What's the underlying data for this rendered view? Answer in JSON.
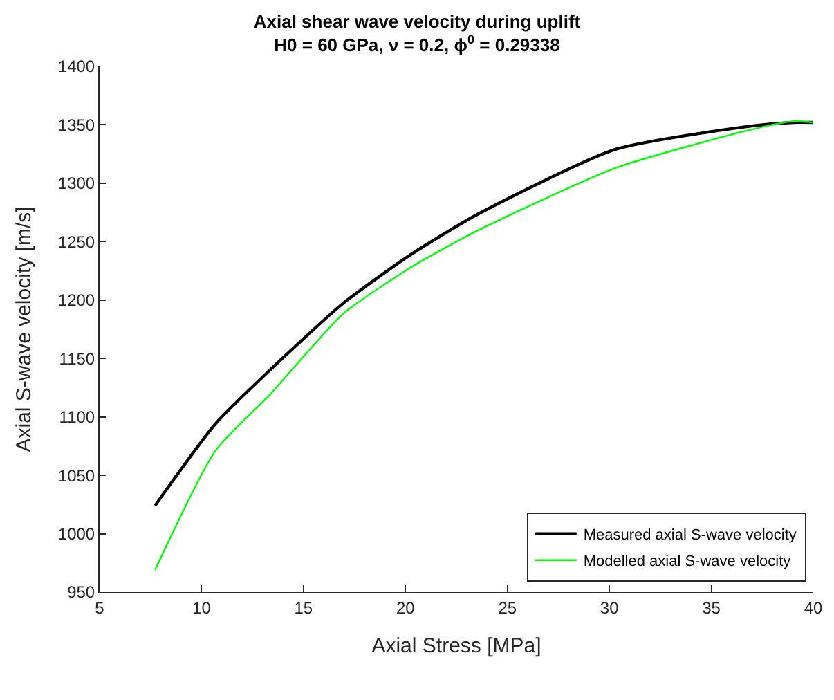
{
  "chart_data": {
    "type": "line",
    "title": "Axial shear wave velocity during uplift",
    "subtitle": "H0 = 60 GPa, ν = 0.2, ϕ$^{0}$ = 0.29338",
    "xlabel": "Axial Stress [MPa]",
    "ylabel": "Axial S-wave velocity [m/s]",
    "series": [
      {
        "name": "Measured axial S-wave velocity",
        "color": "#000000",
        "x": [
          7.72,
          10.68,
          13.35,
          16.93,
          20.27,
          23.6,
          30.3,
          36.98,
          39.0,
          40.0
        ],
        "values": [
          1024,
          1094,
          1140,
          1197,
          1239,
          1274,
          1329,
          1349,
          1352,
          1352
        ]
      },
      {
        "name": "Modelled axial S-wave velocity",
        "color": "#00ff00",
        "x": [
          7.72,
          10.68,
          13.35,
          16.93,
          20.27,
          23.6,
          30.3,
          36.98,
          39.0,
          40.0
        ],
        "values": [
          969,
          1071,
          1119,
          1188,
          1228,
          1260,
          1313,
          1346,
          1353,
          1352
        ]
      }
    ],
    "xlim": [
      5,
      40
    ],
    "xticks": [
      5,
      10,
      15,
      20,
      25,
      30,
      35,
      40
    ],
    "ylim": [
      950,
      1400
    ],
    "yticks": [
      950,
      1000,
      1050,
      1100,
      1150,
      1200,
      1250,
      1300,
      1350,
      1400
    ],
    "legend": "bottom right"
  }
}
